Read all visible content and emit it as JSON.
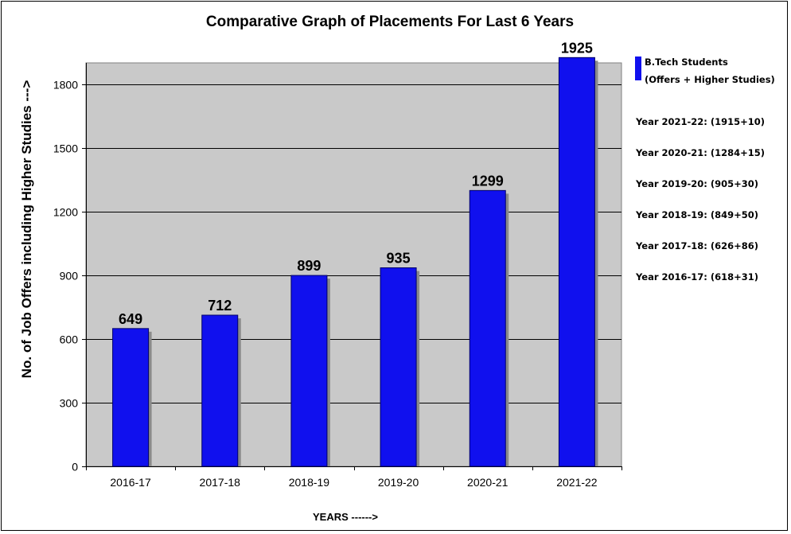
{
  "chart_data": {
    "type": "bar",
    "title": "Comparative Graph of Placements For Last 6 Years",
    "xlabel": "YEARS ------>",
    "ylabel": "No. of Job Offers including Higher Studies --->",
    "categories": [
      "2016-17",
      "2017-18",
      "2018-19",
      "2019-20",
      "2020-21",
      "2021-22"
    ],
    "series": [
      {
        "name": "B.Tech Students (Offers + Higher Studies)",
        "values": [
          649,
          712,
          899,
          935,
          1299,
          1925
        ]
      }
    ],
    "data_labels": [
      "649",
      "712",
      "899",
      "935",
      "1299",
      "1925"
    ],
    "ylim": [
      0,
      1900
    ],
    "yticks": [
      0,
      300,
      600,
      900,
      1200,
      1500,
      1800
    ],
    "grid": true,
    "legend_position": "right",
    "legend": {
      "series_label_line1": "B.Tech Students",
      "series_label_line2": "(Offers + Higher Studies)",
      "notes": [
        "Year 2021-22: (1915+10)",
        "Year 2020-21: (1284+15)",
        "Year 2019-20: (905+30)",
        "Year 2018-19: (849+50)",
        "Year 2017-18: (626+86)",
        "Year 2016-17: (618+31)"
      ]
    },
    "colors": {
      "bar": "#1010ee",
      "bar_shadow": "#8a8a8a",
      "plot_background": "#c9c9c9",
      "gridline": "#000000"
    }
  }
}
